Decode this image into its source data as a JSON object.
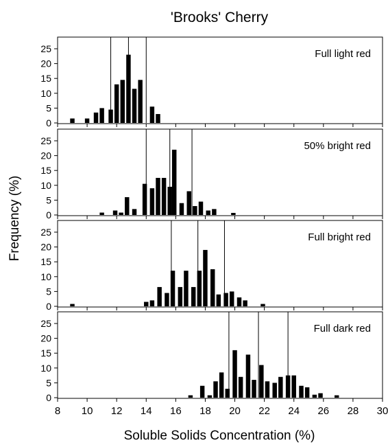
{
  "chart_data": {
    "type": "bar",
    "title": "'Brooks' Cherry",
    "xlabel": "Soluble Solids Concentration (%)",
    "ylabel": "Frequency (%)",
    "xlim": [
      8,
      30
    ],
    "ylim": [
      0,
      28
    ],
    "x_ticks": [
      8,
      10,
      12,
      14,
      16,
      18,
      20,
      22,
      24,
      26,
      28,
      30
    ],
    "y_ticks": [
      0,
      5,
      10,
      15,
      20,
      25
    ],
    "bar_width": 0.3,
    "colors": {
      "bar": "#000000",
      "axis": "#000000"
    },
    "panels": [
      {
        "label": "Full light red",
        "vlines": [
          11.6,
          12.8,
          14.0
        ],
        "bars": [
          {
            "x": 9.0,
            "y": 1.5
          },
          {
            "x": 10.0,
            "y": 1.5
          },
          {
            "x": 10.6,
            "y": 3.5
          },
          {
            "x": 11.0,
            "y": 5.0
          },
          {
            "x": 11.6,
            "y": 4.5
          },
          {
            "x": 12.0,
            "y": 13.0
          },
          {
            "x": 12.4,
            "y": 14.5
          },
          {
            "x": 12.8,
            "y": 23.0
          },
          {
            "x": 13.2,
            "y": 11.5
          },
          {
            "x": 13.6,
            "y": 14.5
          },
          {
            "x": 14.4,
            "y": 5.5
          },
          {
            "x": 14.8,
            "y": 3.0
          }
        ]
      },
      {
        "label": "50% bright red",
        "vlines": [
          14.0,
          15.6,
          17.1
        ],
        "bars": [
          {
            "x": 11.0,
            "y": 0.8
          },
          {
            "x": 11.9,
            "y": 1.5
          },
          {
            "x": 12.3,
            "y": 0.8
          },
          {
            "x": 12.7,
            "y": 6.0
          },
          {
            "x": 13.2,
            "y": 2.0
          },
          {
            "x": 13.9,
            "y": 10.5
          },
          {
            "x": 14.4,
            "y": 9.0
          },
          {
            "x": 14.8,
            "y": 12.5
          },
          {
            "x": 15.2,
            "y": 12.5
          },
          {
            "x": 15.6,
            "y": 9.5
          },
          {
            "x": 15.9,
            "y": 22.0
          },
          {
            "x": 16.4,
            "y": 4.0
          },
          {
            "x": 16.9,
            "y": 8.0
          },
          {
            "x": 17.3,
            "y": 3.0
          },
          {
            "x": 17.7,
            "y": 4.5
          },
          {
            "x": 18.2,
            "y": 1.5
          },
          {
            "x": 18.6,
            "y": 2.0
          },
          {
            "x": 19.9,
            "y": 0.7
          }
        ]
      },
      {
        "label": "Full bright red",
        "vlines": [
          15.7,
          17.5,
          19.3
        ],
        "bars": [
          {
            "x": 9.0,
            "y": 0.8
          },
          {
            "x": 14.0,
            "y": 1.5
          },
          {
            "x": 14.4,
            "y": 2.0
          },
          {
            "x": 14.9,
            "y": 6.5
          },
          {
            "x": 15.4,
            "y": 4.5
          },
          {
            "x": 15.8,
            "y": 12.0
          },
          {
            "x": 16.3,
            "y": 6.5
          },
          {
            "x": 16.7,
            "y": 12.0
          },
          {
            "x": 17.2,
            "y": 6.5
          },
          {
            "x": 17.6,
            "y": 12.0
          },
          {
            "x": 18.0,
            "y": 19.0
          },
          {
            "x": 18.5,
            "y": 12.5
          },
          {
            "x": 18.9,
            "y": 4.0
          },
          {
            "x": 19.4,
            "y": 4.5
          },
          {
            "x": 19.8,
            "y": 5.0
          },
          {
            "x": 20.3,
            "y": 3.0
          },
          {
            "x": 20.7,
            "y": 2.0
          },
          {
            "x": 21.9,
            "y": 0.8
          }
        ]
      },
      {
        "label": "Full dark red",
        "vlines": [
          19.6,
          21.6,
          23.6
        ],
        "bars": [
          {
            "x": 17.0,
            "y": 0.8
          },
          {
            "x": 17.8,
            "y": 4.0
          },
          {
            "x": 18.3,
            "y": 0.8
          },
          {
            "x": 18.7,
            "y": 5.5
          },
          {
            "x": 19.1,
            "y": 8.5
          },
          {
            "x": 19.5,
            "y": 3.0
          },
          {
            "x": 20.0,
            "y": 16.0
          },
          {
            "x": 20.4,
            "y": 7.0
          },
          {
            "x": 20.9,
            "y": 14.5
          },
          {
            "x": 21.3,
            "y": 6.0
          },
          {
            "x": 21.8,
            "y": 11.0
          },
          {
            "x": 22.2,
            "y": 5.5
          },
          {
            "x": 22.7,
            "y": 5.0
          },
          {
            "x": 23.1,
            "y": 7.0
          },
          {
            "x": 23.6,
            "y": 7.5
          },
          {
            "x": 24.0,
            "y": 7.5
          },
          {
            "x": 24.5,
            "y": 4.0
          },
          {
            "x": 24.9,
            "y": 3.5
          },
          {
            "x": 25.4,
            "y": 1.0
          },
          {
            "x": 25.8,
            "y": 1.5
          },
          {
            "x": 26.9,
            "y": 0.8
          }
        ]
      }
    ]
  }
}
